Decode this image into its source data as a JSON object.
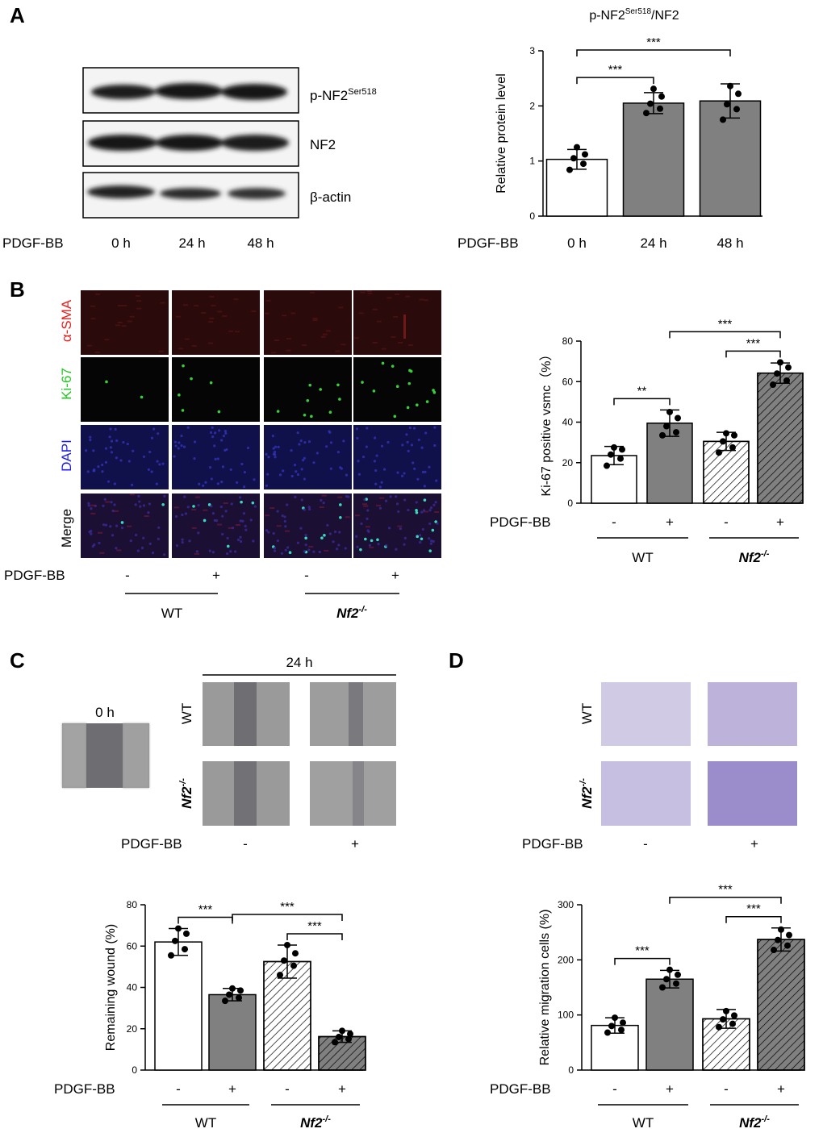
{
  "panels": {
    "a": {
      "letter": "A",
      "blot_labels": [
        "p-NF2",
        "NF2",
        "β-actin"
      ],
      "superscript": "Ser518",
      "pdgf_label": "PDGF-BB",
      "time_labels": [
        "0 h",
        "24 h",
        "48 h"
      ]
    },
    "b": {
      "letter": "B",
      "row_labels": [
        "α-SMA",
        "Ki-67",
        "DAPI",
        "Merge"
      ],
      "row_colors": [
        "#e8201e",
        "#22c722",
        "#2020e0",
        "#000000"
      ],
      "pdgf_label": "PDGF-BB",
      "treatment": [
        "-",
        "+",
        "-",
        "+"
      ],
      "groups": [
        "WT",
        "Nf2"
      ],
      "group_superscript": "-/-"
    },
    "c": {
      "letter": "C",
      "time0_label": "0 h",
      "time24_label": "24 h",
      "row_labels": [
        "WT",
        "Nf2"
      ],
      "row_superscript": "-/-",
      "pdgf_label": "PDGF-BB",
      "treatment": [
        "-",
        "+"
      ]
    },
    "d": {
      "letter": "D",
      "row_labels": [
        "WT",
        "Nf2"
      ],
      "row_superscript": "-/-",
      "pdgf_label": "PDGF-BB",
      "treatment": [
        "-",
        "+"
      ]
    }
  },
  "chart_data": [
    {
      "id": "a",
      "type": "bar",
      "title_main": "p-NF2",
      "title_sup": "Ser518",
      "title_tail": "/NF2",
      "ylabel": "Relative protein level",
      "ylim": [
        0,
        3
      ],
      "yticks": [
        0,
        1,
        2,
        3
      ],
      "categories": [
        "0 h",
        "24 h",
        "48 h"
      ],
      "x_prefix": "PDGF-BB",
      "values": [
        1.03,
        2.05,
        2.09
      ],
      "errors": [
        0.18,
        0.19,
        0.31
      ],
      "points": [
        [
          0.84,
          0.95,
          1.05,
          1.12,
          1.25
        ],
        [
          1.87,
          1.95,
          2.04,
          2.17,
          2.31
        ],
        [
          1.75,
          1.94,
          2.03,
          2.22,
          2.36
        ]
      ],
      "fills": [
        "#ffffff",
        "#808080",
        "#808080"
      ],
      "hatch": [
        false,
        false,
        false
      ],
      "significance": [
        {
          "from": 0,
          "to": 1,
          "label": "***"
        },
        {
          "from": 0,
          "to": 2,
          "label": "***"
        }
      ]
    },
    {
      "id": "b",
      "type": "bar",
      "ylabel": "Ki-67 positive vsmc（%）",
      "ylim": [
        0,
        80
      ],
      "yticks": [
        0,
        20,
        40,
        60,
        80
      ],
      "categories": [
        "-",
        "+",
        "-",
        "+"
      ],
      "x_prefix": "PDGF-BB",
      "groups": [
        "WT",
        "Nf2"
      ],
      "group_sup": "-/-",
      "values": [
        23.5,
        39.5,
        30.5,
        64.2
      ],
      "errors": [
        4.5,
        6.5,
        4.5,
        5.0
      ],
      "points": [
        [
          18.5,
          22,
          24,
          26.5,
          27.5
        ],
        [
          33.5,
          35,
          38,
          42,
          45
        ],
        [
          25,
          27.5,
          30.5,
          33.5,
          34.5
        ],
        [
          58.5,
          60.5,
          64,
          67,
          69.5
        ]
      ],
      "fills": [
        "#ffffff",
        "#808080",
        "#ffffff",
        "#808080"
      ],
      "hatch": [
        false,
        false,
        true,
        true
      ],
      "significance": [
        {
          "from": 0,
          "to": 1,
          "label": "**"
        },
        {
          "from": 2,
          "to": 3,
          "label": "***"
        },
        {
          "from": 1,
          "to": 3,
          "label": "***"
        }
      ]
    },
    {
      "id": "c",
      "type": "bar",
      "ylabel": "Remaining wound (%)",
      "ylim": [
        0,
        80
      ],
      "yticks": [
        0,
        20,
        40,
        60,
        80
      ],
      "categories": [
        "-",
        "+",
        "-",
        "+"
      ],
      "x_prefix": "PDGF-BB",
      "groups": [
        "WT",
        "Nf2"
      ],
      "group_sup": "-/-",
      "values": [
        62.0,
        36.5,
        52.5,
        16.2
      ],
      "errors": [
        6.5,
        3.0,
        8.0,
        2.8
      ],
      "points": [
        [
          55.5,
          58.5,
          62.5,
          66,
          68.5
        ],
        [
          33.5,
          35,
          36.5,
          38.5,
          39.5
        ],
        [
          46,
          50.5,
          53,
          56.5,
          60.5
        ],
        [
          13.5,
          15,
          16,
          17.5,
          19
        ]
      ],
      "fills": [
        "#ffffff",
        "#808080",
        "#ffffff",
        "#808080"
      ],
      "hatch": [
        false,
        false,
        true,
        true
      ],
      "significance": [
        {
          "from": 0,
          "to": 1,
          "label": "***"
        },
        {
          "from": 2,
          "to": 3,
          "label": "***"
        },
        {
          "from": 1,
          "to": 3,
          "label": "***"
        }
      ]
    },
    {
      "id": "d",
      "type": "bar",
      "ylabel": "Relative migration cells (%)",
      "ylim": [
        0,
        300
      ],
      "yticks": [
        0,
        100,
        200,
        300
      ],
      "categories": [
        "-",
        "+",
        "-",
        "+"
      ],
      "x_prefix": "PDGF-BB",
      "groups": [
        "WT",
        "Nf2"
      ],
      "group_sup": "-/-",
      "values": [
        81,
        165,
        93,
        237
      ],
      "errors": [
        14,
        16,
        17,
        21
      ],
      "points": [
        [
          68,
          73,
          80,
          86,
          95
        ],
        [
          150,
          157,
          165,
          173,
          182
        ],
        [
          78,
          84,
          92,
          99,
          107
        ],
        [
          218,
          226,
          236,
          245,
          255
        ]
      ],
      "fills": [
        "#ffffff",
        "#808080",
        "#ffffff",
        "#808080"
      ],
      "hatch": [
        false,
        false,
        true,
        true
      ],
      "significance": [
        {
          "from": 0,
          "to": 1,
          "label": "***"
        },
        {
          "from": 2,
          "to": 3,
          "label": "***"
        },
        {
          "from": 1,
          "to": 3,
          "label": "***"
        }
      ]
    }
  ]
}
